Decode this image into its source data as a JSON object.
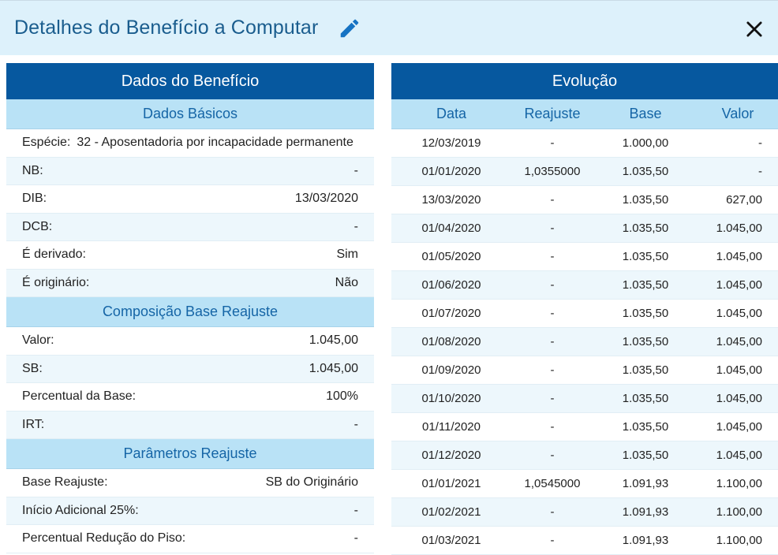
{
  "dialog": {
    "title": "Detalhes do Benefício a Computar",
    "edit_icon": "pencil-icon",
    "close_icon": "close-icon"
  },
  "left": {
    "title": "Dados do Benefício",
    "basic": {
      "title": "Dados Básicos",
      "especie_label": "Espécie:",
      "especie_value": "32 - Aposentadoria por incapacidade permanente",
      "rows": [
        {
          "label": "NB:",
          "value": "-"
        },
        {
          "label": "DIB:",
          "value": "13/03/2020"
        },
        {
          "label": "DCB:",
          "value": "-"
        },
        {
          "label": "É derivado:",
          "value": "Sim"
        },
        {
          "label": "É originário:",
          "value": "Não"
        }
      ]
    },
    "composicao": {
      "title": "Composição Base Reajuste",
      "rows": [
        {
          "label": "Valor:",
          "value": "1.045,00"
        },
        {
          "label": "SB:",
          "value": "1.045,00"
        },
        {
          "label": "Percentual da Base:",
          "value": "100%"
        },
        {
          "label": "IRT:",
          "value": "-"
        }
      ]
    },
    "parametros": {
      "title": "Parâmetros Reajuste",
      "rows": [
        {
          "label": "Base Reajuste:",
          "value": "SB do Originário"
        },
        {
          "label": "Início Adicional 25%:",
          "value": "-"
        },
        {
          "label": "Percentual Redução do Piso:",
          "value": "-"
        }
      ]
    }
  },
  "right": {
    "title": "Evolução",
    "columns": [
      "Data",
      "Reajuste",
      "Base",
      "Valor"
    ],
    "rows": [
      [
        "12/03/2019",
        "-",
        "1.000,00",
        "-"
      ],
      [
        "01/01/2020",
        "1,0355000",
        "1.035,50",
        "-"
      ],
      [
        "13/03/2020",
        "-",
        "1.035,50",
        "627,00"
      ],
      [
        "01/04/2020",
        "-",
        "1.035,50",
        "1.045,00"
      ],
      [
        "01/05/2020",
        "-",
        "1.035,50",
        "1.045,00"
      ],
      [
        "01/06/2020",
        "-",
        "1.035,50",
        "1.045,00"
      ],
      [
        "01/07/2020",
        "-",
        "1.035,50",
        "1.045,00"
      ],
      [
        "01/08/2020",
        "-",
        "1.035,50",
        "1.045,00"
      ],
      [
        "01/09/2020",
        "-",
        "1.035,50",
        "1.045,00"
      ],
      [
        "01/10/2020",
        "-",
        "1.035,50",
        "1.045,00"
      ],
      [
        "01/11/2020",
        "-",
        "1.035,50",
        "1.045,00"
      ],
      [
        "01/12/2020",
        "-",
        "1.035,50",
        "1.045,00"
      ],
      [
        "01/01/2021",
        "1,0545000",
        "1.091,93",
        "1.100,00"
      ],
      [
        "01/02/2021",
        "-",
        "1.091,93",
        "1.100,00"
      ],
      [
        "01/03/2021",
        "-",
        "1.091,93",
        "1.100,00"
      ]
    ]
  }
}
